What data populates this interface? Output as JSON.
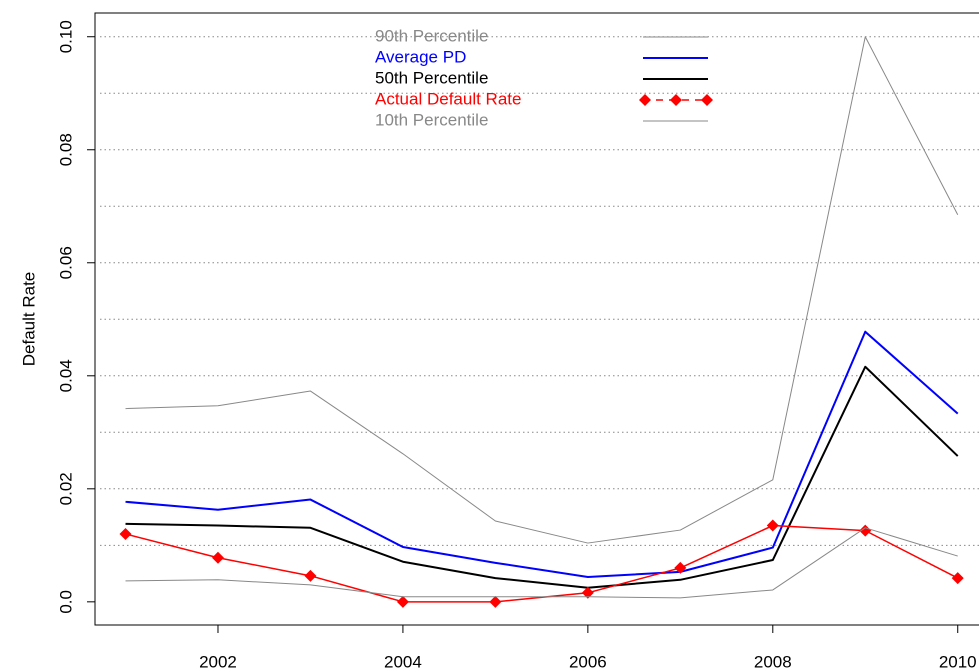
{
  "chart_data": {
    "type": "line",
    "y_label": "Default Rate",
    "x": [
      2001,
      2002,
      2003,
      2004,
      2005,
      2006,
      2007,
      2008,
      2009,
      2010
    ],
    "xlim": [
      2000.67,
      2010.23
    ],
    "xticks": [
      2002,
      2004,
      2006,
      2008,
      2010
    ],
    "ylim": [
      -0.0041,
      0.1042
    ],
    "yticks": [
      {
        "value": 0,
        "label": "0.0"
      },
      0.02,
      0.04,
      0.06,
      0.08,
      {
        "value": 0.1,
        "label": "0.10"
      }
    ],
    "ygrid": [
      0.01,
      0.02,
      0.03,
      0.04,
      0.05,
      0.06,
      0.07,
      0.08,
      0.09,
      0.1
    ],
    "grid": true,
    "legend": "top",
    "series": [
      {
        "name": "90th Percentile",
        "color": "#888888",
        "width": 1,
        "values": [
          0.0342,
          0.0347,
          0.0373,
          0.0262,
          0.0143,
          0.0104,
          0.0127,
          0.0216,
          0.1,
          0.0685
        ]
      },
      {
        "name": "Average PD",
        "color": "#0000ff",
        "width": 2,
        "values": [
          0.0177,
          0.0163,
          0.0181,
          0.0097,
          0.0069,
          0.0044,
          0.0053,
          0.0096,
          0.0478,
          0.0333
        ]
      },
      {
        "name": "50th Percentile",
        "color": "#000000",
        "width": 2,
        "values": [
          0.0138,
          0.0135,
          0.0131,
          0.0071,
          0.0042,
          0.0025,
          0.0039,
          0.0074,
          0.0416,
          0.0258
        ]
      },
      {
        "name": "Actual Default Rate",
        "color": "#ff0000",
        "width": 1.5,
        "marker": "diamond",
        "values": [
          0.012,
          0.0078,
          0.0046,
          0,
          0,
          0.0016,
          0.006,
          0.0135,
          0.0126,
          0.0042
        ]
      },
      {
        "name": "10th Percentile",
        "color": "#888888",
        "width": 1,
        "values": [
          0.0037,
          0.0039,
          0.003,
          0.0009,
          0.0009,
          0.0009,
          0.0007,
          0.0021,
          0.0131,
          0.0081
        ]
      }
    ]
  }
}
